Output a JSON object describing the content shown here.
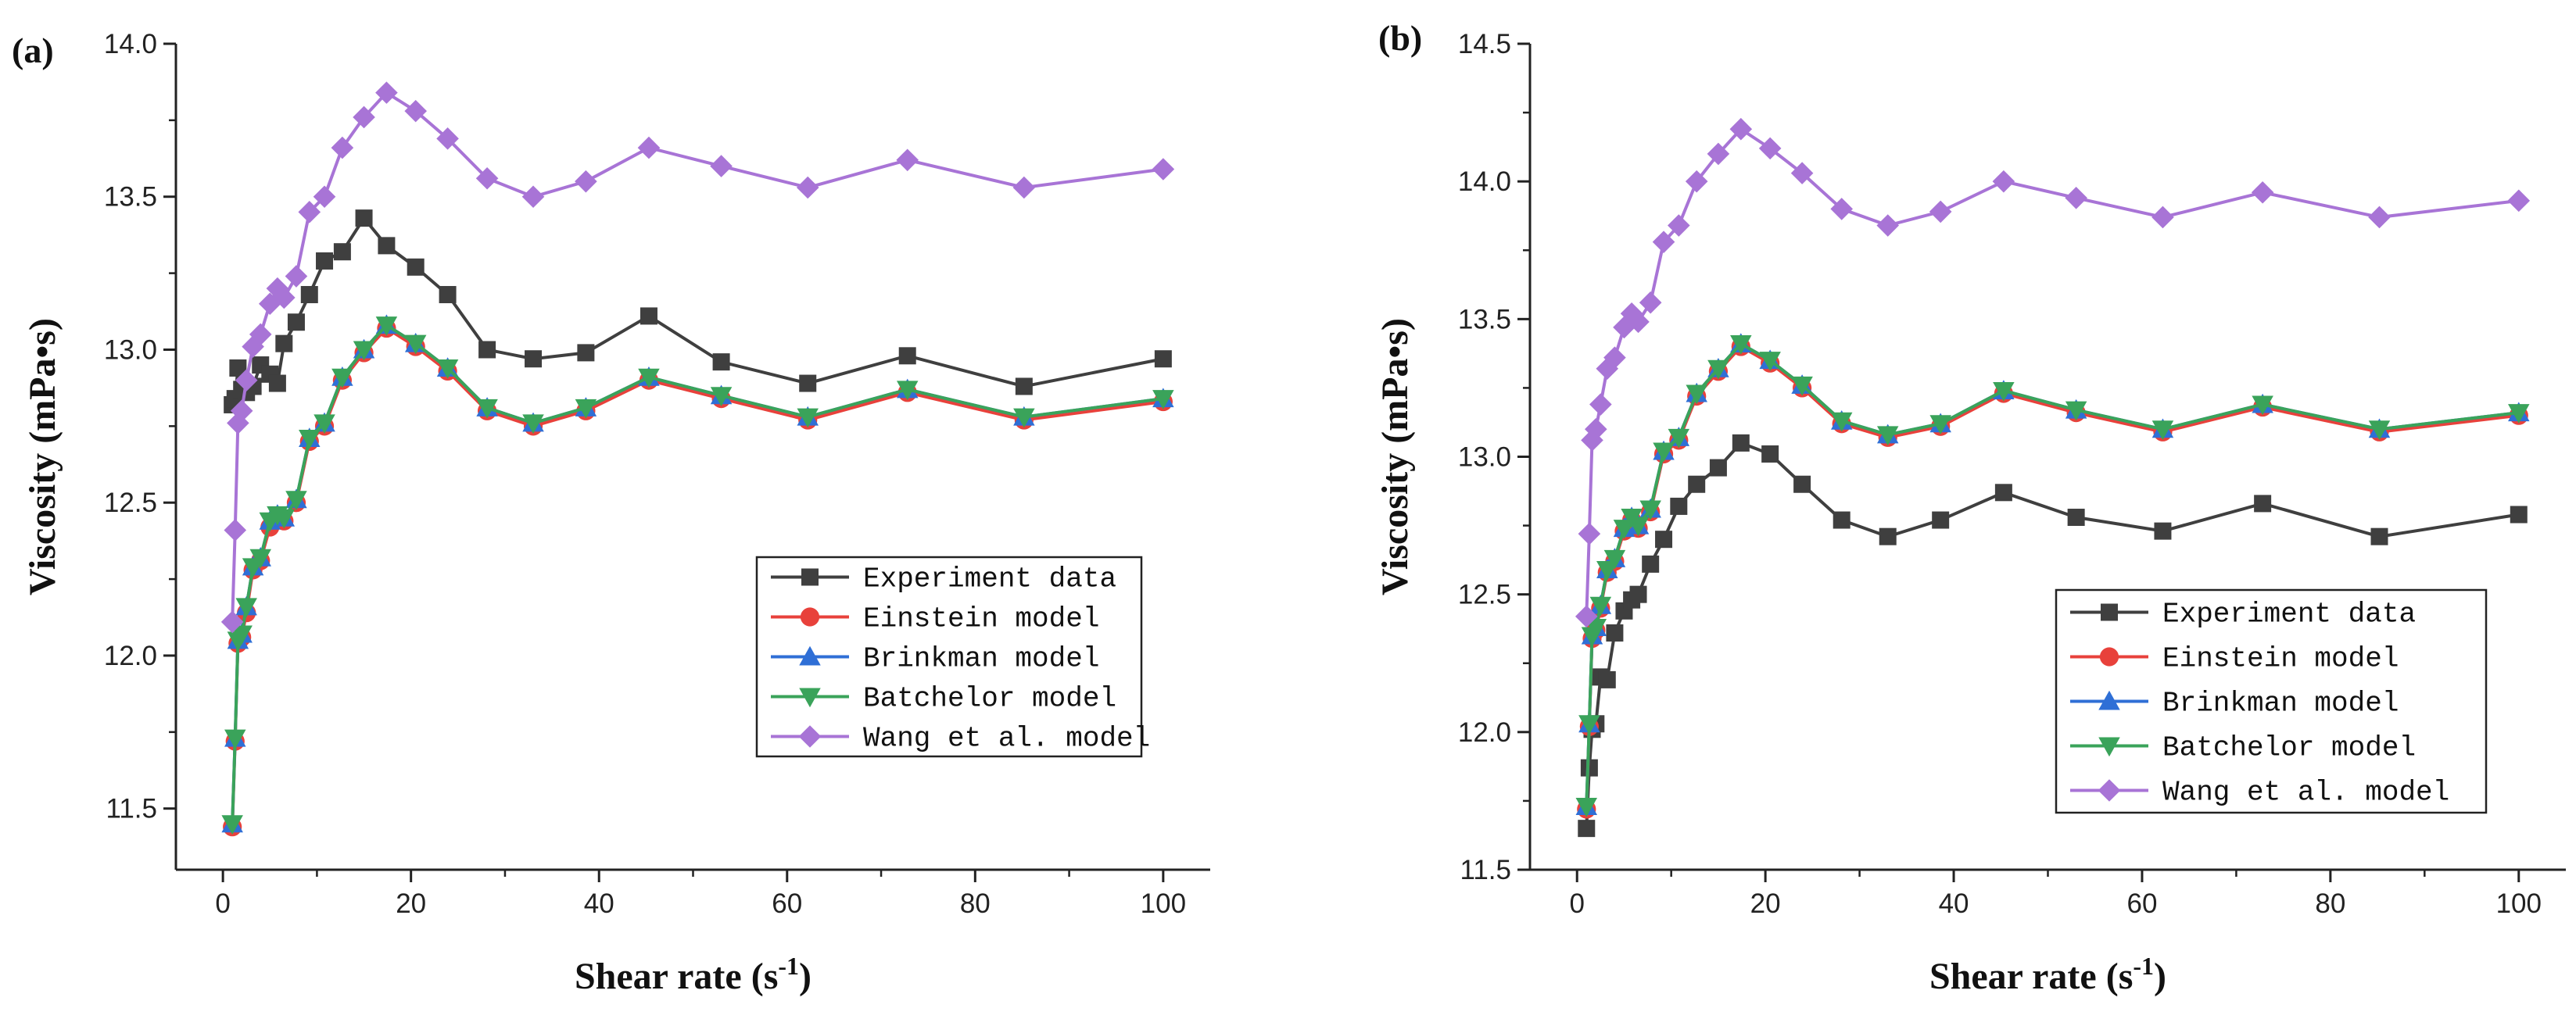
{
  "colors": {
    "Experiment data": "#3f3f3f",
    "Einstein model": "#e8413b",
    "Brinkman model": "#2f6fd6",
    "Batchelor model": "#3aa35a",
    "Wang et al. model": "#a874d6"
  },
  "chart_data": [
    {
      "type": "line",
      "panel_label": "(a)",
      "xlabel": "Shear rate (s",
      "xlabel_sup": "-1",
      "xlabel_close": ")",
      "ylabel": "Viscosity (mPa•s)",
      "xlim": [
        -5,
        105
      ],
      "ylim": [
        11.3,
        14.0
      ],
      "xticks": [
        0,
        20,
        40,
        60,
        80,
        100
      ],
      "yticks": [
        11.5,
        12.0,
        12.5,
        13.0,
        13.5,
        14.0
      ],
      "xtick_labels": [
        "0",
        "20",
        "40",
        "60",
        "80",
        "100"
      ],
      "ytick_labels": [
        "11.5",
        "12.0",
        "12.5",
        "13.0",
        "13.5",
        "14.0"
      ],
      "legend_position": "lower-right",
      "x": [
        1.0,
        1.3,
        1.6,
        2.0,
        2.5,
        3.2,
        4.0,
        5.0,
        5.8,
        6.5,
        7.8,
        9.2,
        10.8,
        12.7,
        15.0,
        17.4,
        20.5,
        23.9,
        28.1,
        33.0,
        38.6,
        45.3,
        53.0,
        62.2,
        72.8,
        85.2,
        100.0
      ],
      "series": [
        {
          "name": "Experiment data",
          "marker": "square",
          "values": [
            12.82,
            12.84,
            12.94,
            12.87,
            12.86,
            12.88,
            12.95,
            12.92,
            12.89,
            13.02,
            13.09,
            13.18,
            13.29,
            13.32,
            13.43,
            13.34,
            13.27,
            13.18,
            13.0,
            12.97,
            12.99,
            13.11,
            12.96,
            12.89,
            12.98,
            12.88,
            12.97
          ]
        },
        {
          "name": "Einstein model",
          "marker": "circle",
          "values": [
            11.44,
            11.72,
            12.04,
            12.06,
            12.14,
            12.28,
            12.31,
            12.42,
            12.45,
            12.44,
            12.5,
            12.7,
            12.75,
            12.9,
            12.99,
            13.07,
            13.01,
            12.93,
            12.8,
            12.75,
            12.8,
            12.9,
            12.84,
            12.77,
            12.86,
            12.77,
            12.83
          ]
        },
        {
          "name": "Brinkman model",
          "marker": "triangle-up",
          "values": [
            11.45,
            11.73,
            12.05,
            12.07,
            12.16,
            12.29,
            12.32,
            12.44,
            12.46,
            12.45,
            12.51,
            12.71,
            12.76,
            12.91,
            13.0,
            13.08,
            13.02,
            12.94,
            12.81,
            12.76,
            12.81,
            12.91,
            12.85,
            12.78,
            12.87,
            12.78,
            12.84
          ]
        },
        {
          "name": "Batchelor model",
          "marker": "triangle-down",
          "values": [
            11.45,
            11.73,
            12.05,
            12.07,
            12.16,
            12.29,
            12.32,
            12.44,
            12.46,
            12.45,
            12.51,
            12.71,
            12.76,
            12.91,
            13.0,
            13.08,
            13.02,
            12.94,
            12.81,
            12.76,
            12.81,
            12.91,
            12.85,
            12.78,
            12.87,
            12.78,
            12.84
          ]
        },
        {
          "name": "Wang et al. model",
          "marker": "diamond",
          "values": [
            12.11,
            12.41,
            12.76,
            12.8,
            12.9,
            13.01,
            13.05,
            13.15,
            13.2,
            13.17,
            13.24,
            13.45,
            13.5,
            13.66,
            13.76,
            13.84,
            13.78,
            13.69,
            13.56,
            13.5,
            13.55,
            13.66,
            13.6,
            13.53,
            13.62,
            13.53,
            13.59
          ]
        }
      ]
    },
    {
      "type": "line",
      "panel_label": "(b)",
      "xlabel": "Shear rate (s",
      "xlabel_sup": "-1",
      "xlabel_close": ")",
      "ylabel": "Viscosity (mPa•s)",
      "xlim": [
        -5,
        105
      ],
      "ylim": [
        11.5,
        14.5
      ],
      "xticks": [
        0,
        20,
        40,
        60,
        80,
        100
      ],
      "yticks": [
        11.5,
        12.0,
        12.5,
        13.0,
        13.5,
        14.0,
        14.5
      ],
      "xtick_labels": [
        "0",
        "20",
        "40",
        "60",
        "80",
        "100"
      ],
      "ytick_labels": [
        "11.5",
        "12.0",
        "12.5",
        "13.0",
        "13.5",
        "14.0",
        "14.5"
      ],
      "legend_position": "lower-right",
      "x": [
        1.0,
        1.3,
        1.6,
        2.0,
        2.5,
        3.2,
        4.0,
        5.0,
        5.8,
        6.5,
        7.8,
        9.2,
        10.8,
        12.7,
        15.0,
        17.4,
        20.5,
        23.9,
        28.1,
        33.0,
        38.6,
        45.3,
        53.0,
        62.2,
        72.8,
        85.2,
        100.0
      ],
      "series": [
        {
          "name": "Experiment data",
          "marker": "square",
          "values": [
            11.65,
            11.87,
            12.01,
            12.03,
            12.2,
            12.19,
            12.36,
            12.44,
            12.48,
            12.5,
            12.61,
            12.7,
            12.82,
            12.9,
            12.96,
            13.05,
            13.01,
            12.9,
            12.77,
            12.71,
            12.77,
            12.87,
            12.78,
            12.73,
            12.83,
            12.71,
            12.79
          ]
        },
        {
          "name": "Einstein model",
          "marker": "circle",
          "values": [
            11.72,
            12.02,
            12.34,
            12.37,
            12.45,
            12.58,
            12.62,
            12.73,
            12.77,
            12.74,
            12.8,
            13.01,
            13.06,
            13.22,
            13.31,
            13.4,
            13.34,
            13.25,
            13.12,
            13.07,
            13.11,
            13.23,
            13.16,
            13.09,
            13.18,
            13.09,
            13.15
          ]
        },
        {
          "name": "Brinkman model",
          "marker": "triangle-up",
          "values": [
            11.73,
            12.03,
            12.35,
            12.38,
            12.46,
            12.59,
            12.63,
            12.74,
            12.78,
            12.75,
            12.81,
            13.02,
            13.07,
            13.23,
            13.32,
            13.41,
            13.35,
            13.26,
            13.13,
            13.08,
            13.12,
            13.24,
            13.17,
            13.1,
            13.19,
            13.1,
            13.16
          ]
        },
        {
          "name": "Batchelor model",
          "marker": "triangle-down",
          "values": [
            11.73,
            12.03,
            12.35,
            12.38,
            12.46,
            12.59,
            12.63,
            12.74,
            12.78,
            12.75,
            12.81,
            13.02,
            13.07,
            13.23,
            13.32,
            13.41,
            13.35,
            13.26,
            13.13,
            13.08,
            13.12,
            13.24,
            13.17,
            13.1,
            13.19,
            13.1,
            13.16
          ]
        },
        {
          "name": "Wang et al. model",
          "marker": "diamond",
          "values": [
            12.42,
            12.72,
            13.06,
            13.1,
            13.19,
            13.32,
            13.36,
            13.47,
            13.52,
            13.49,
            13.56,
            13.78,
            13.84,
            14.0,
            14.1,
            14.19,
            14.12,
            14.03,
            13.9,
            13.84,
            13.89,
            14.0,
            13.94,
            13.87,
            13.96,
            13.87,
            13.93
          ]
        }
      ]
    }
  ]
}
